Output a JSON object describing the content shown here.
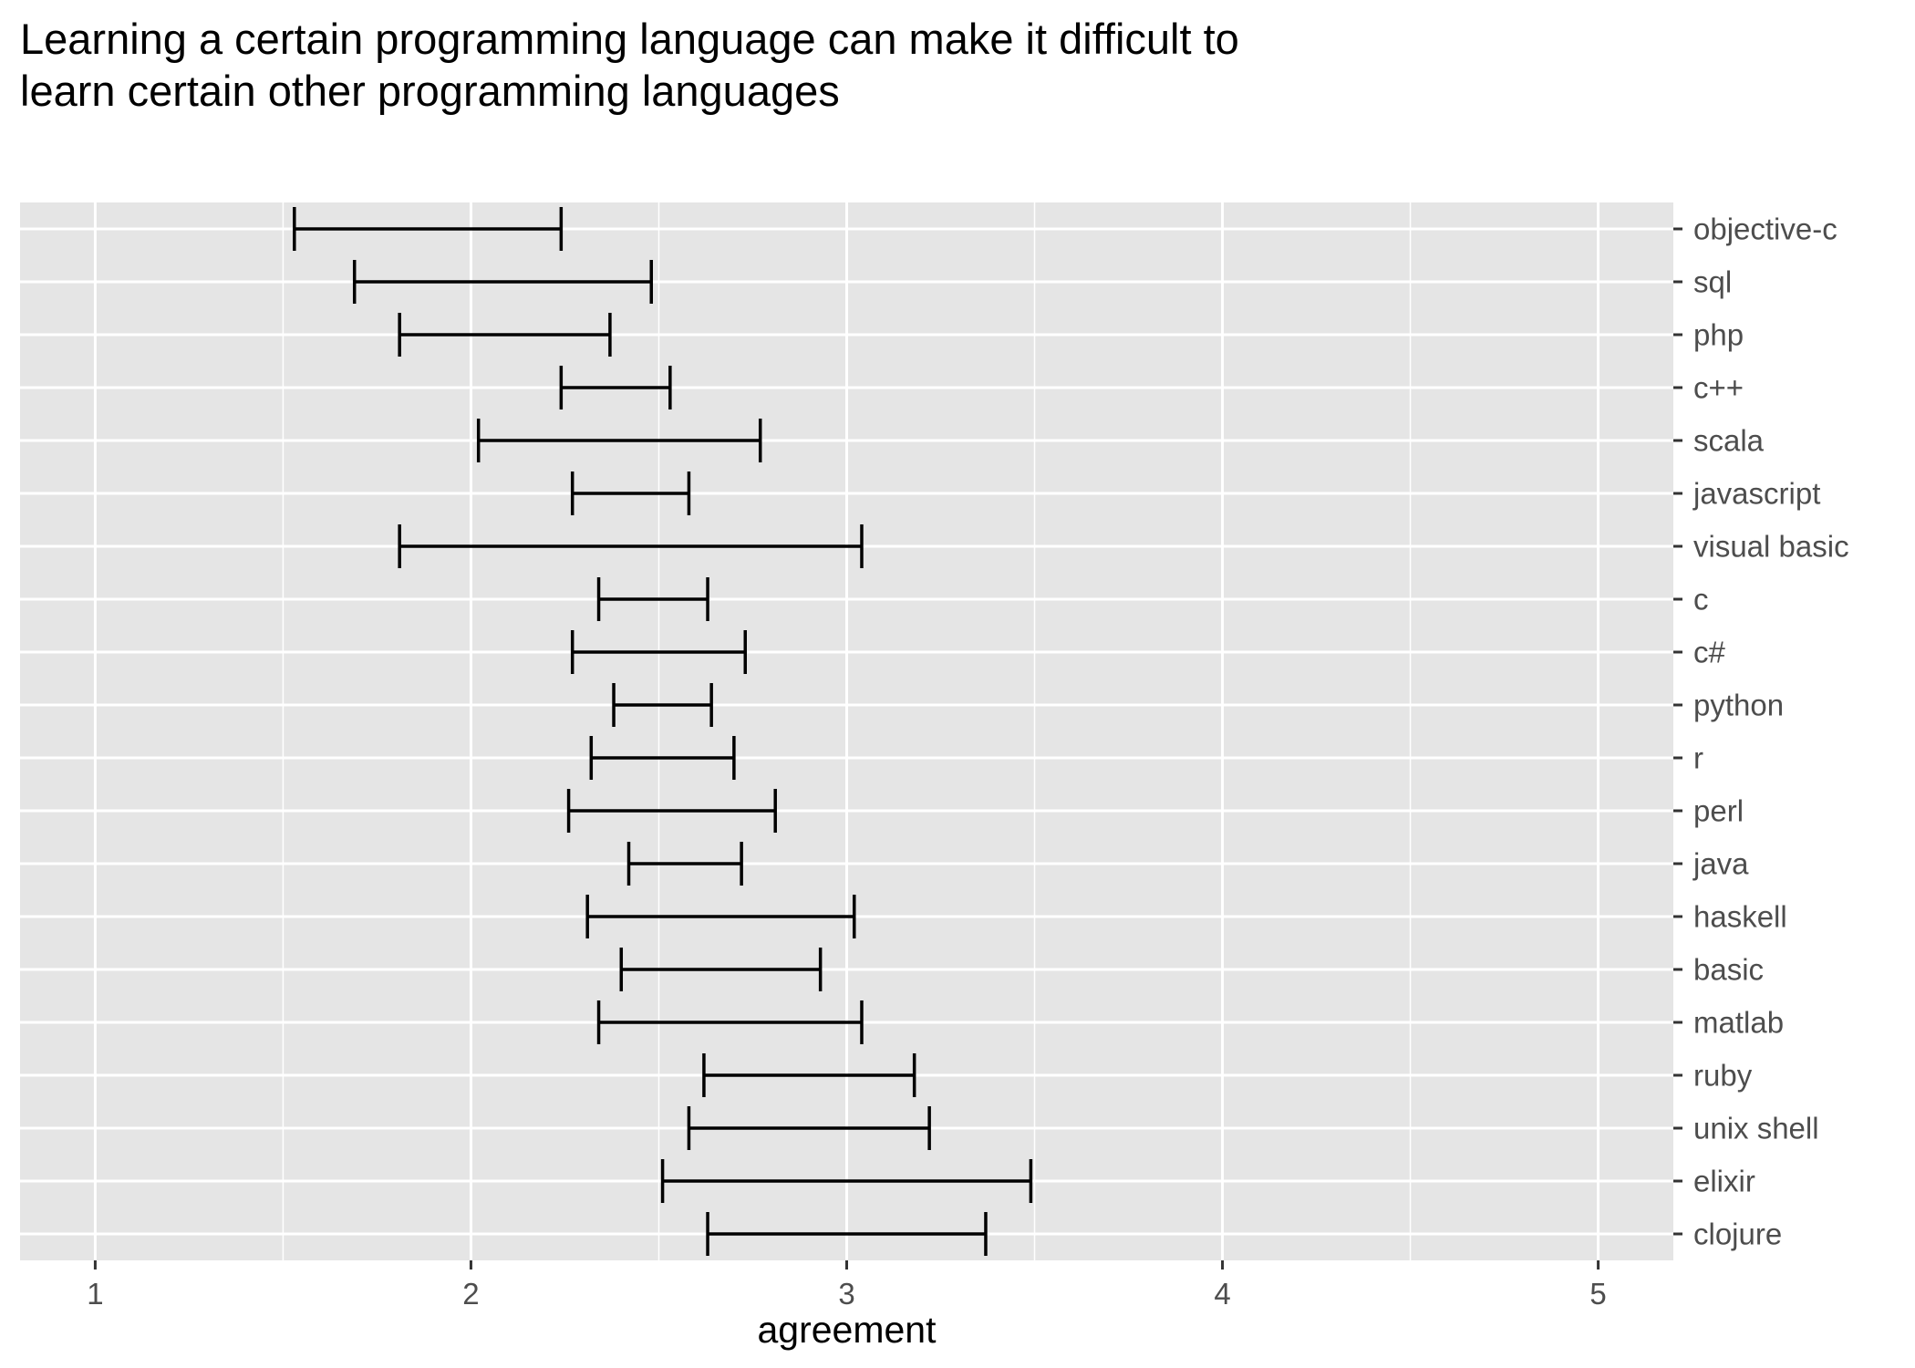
{
  "chart_data": {
    "type": "errorbar",
    "title": "Learning a certain programming language can make it difficult to learn certain other programming languages",
    "xlabel": "agreement",
    "ylabel": "",
    "xlim": [
      0.8,
      5.2
    ],
    "xticks": [
      1,
      2,
      3,
      4,
      5
    ],
    "grid": true,
    "legend": "none",
    "orientation": "horizontal",
    "categories": [
      "objective-c",
      "sql",
      "php",
      "c++",
      "scala",
      "javascript",
      "visual basic",
      "c",
      "c#",
      "python",
      "r",
      "perl",
      "java",
      "haskell",
      "basic",
      "matlab",
      "ruby",
      "unix shell",
      "elixir",
      "clojure"
    ],
    "intervals": [
      {
        "category": "objective-c",
        "low": 1.53,
        "high": 2.24
      },
      {
        "category": "sql",
        "low": 1.69,
        "high": 2.48
      },
      {
        "category": "php",
        "low": 1.81,
        "high": 2.37
      },
      {
        "category": "c++",
        "low": 2.24,
        "high": 2.53
      },
      {
        "category": "scala",
        "low": 2.02,
        "high": 2.77
      },
      {
        "category": "javascript",
        "low": 2.27,
        "high": 2.58
      },
      {
        "category": "visual basic",
        "low": 1.81,
        "high": 3.04
      },
      {
        "category": "c",
        "low": 2.34,
        "high": 2.63
      },
      {
        "category": "c#",
        "low": 2.27,
        "high": 2.73
      },
      {
        "category": "python",
        "low": 2.38,
        "high": 2.64
      },
      {
        "category": "r",
        "low": 2.32,
        "high": 2.7
      },
      {
        "category": "perl",
        "low": 2.26,
        "high": 2.81
      },
      {
        "category": "java",
        "low": 2.42,
        "high": 2.72
      },
      {
        "category": "haskell",
        "low": 2.31,
        "high": 3.02
      },
      {
        "category": "basic",
        "low": 2.4,
        "high": 2.93
      },
      {
        "category": "matlab",
        "low": 2.34,
        "high": 3.04
      },
      {
        "category": "ruby",
        "low": 2.62,
        "high": 3.18
      },
      {
        "category": "unix shell",
        "low": 2.58,
        "high": 3.22
      },
      {
        "category": "elixir",
        "low": 2.51,
        "high": 3.49
      },
      {
        "category": "clojure",
        "low": 2.63,
        "high": 3.37
      }
    ],
    "colors": {
      "panel_background": "#e5e5e5",
      "grid": "#ffffff",
      "bars": "#000000",
      "tick_text": "#4d4d4d",
      "title_text": "#000000"
    }
  }
}
